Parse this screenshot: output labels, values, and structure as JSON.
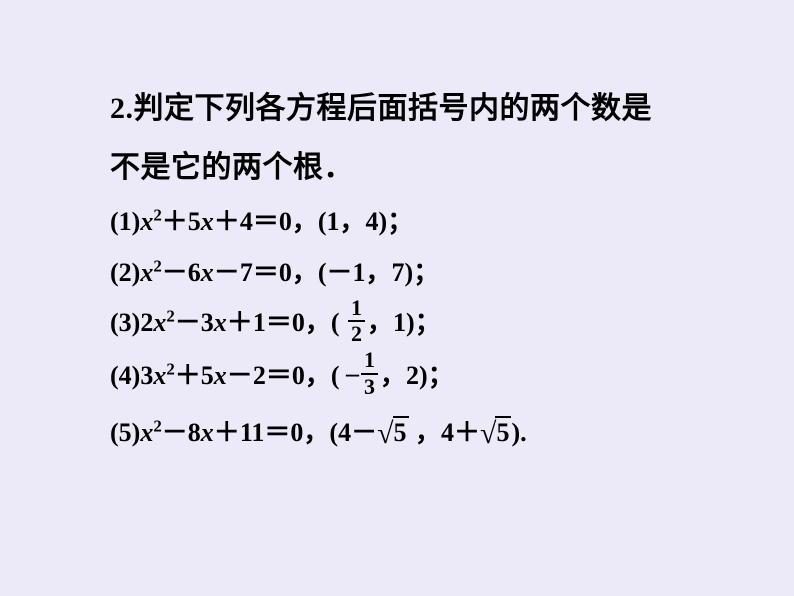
{
  "background_color": "#eceaf8",
  "text_color": "#000000",
  "intro_fontsize": 30,
  "eq_fontsize": 26,
  "frac_fontsize": 22,
  "intro": {
    "line1": "2.判定下列各方程后面括号内的两个数是",
    "line2": "不是它的两个根．"
  },
  "problems": [
    {
      "label": "(1)",
      "expr": "x²＋5x＋4＝0",
      "vals_prefix": "(1",
      "sep": "，",
      "vals_suffix": "4)",
      "end": "；"
    },
    {
      "label": "(2)",
      "expr": "x²－6x－7＝0",
      "vals_prefix": "(－1",
      "sep": "，",
      "vals_suffix": "7)",
      "end": "；"
    },
    {
      "label": "(3)",
      "expr": "2x²－3x＋1＝0",
      "vals_prefix": "(",
      "frac_num": "1",
      "frac_den": "2",
      "sep": "，",
      "vals_suffix": "1)",
      "end": "；"
    },
    {
      "label": "(4)",
      "expr": "3x²＋5x－2＝0",
      "vals_prefix": "(",
      "neg": "–",
      "frac_num": "1",
      "frac_den": "3",
      "sep": "，",
      "vals_suffix": "2)",
      "end": "；"
    },
    {
      "label": "(5)",
      "expr": "x²－8x＋11＝0",
      "vals_prefix": "(4－",
      "sqrt1": "5",
      "sep": "，",
      "mid": "4＋",
      "sqrt2": "5",
      "vals_suffix": ")",
      "end": "."
    }
  ]
}
